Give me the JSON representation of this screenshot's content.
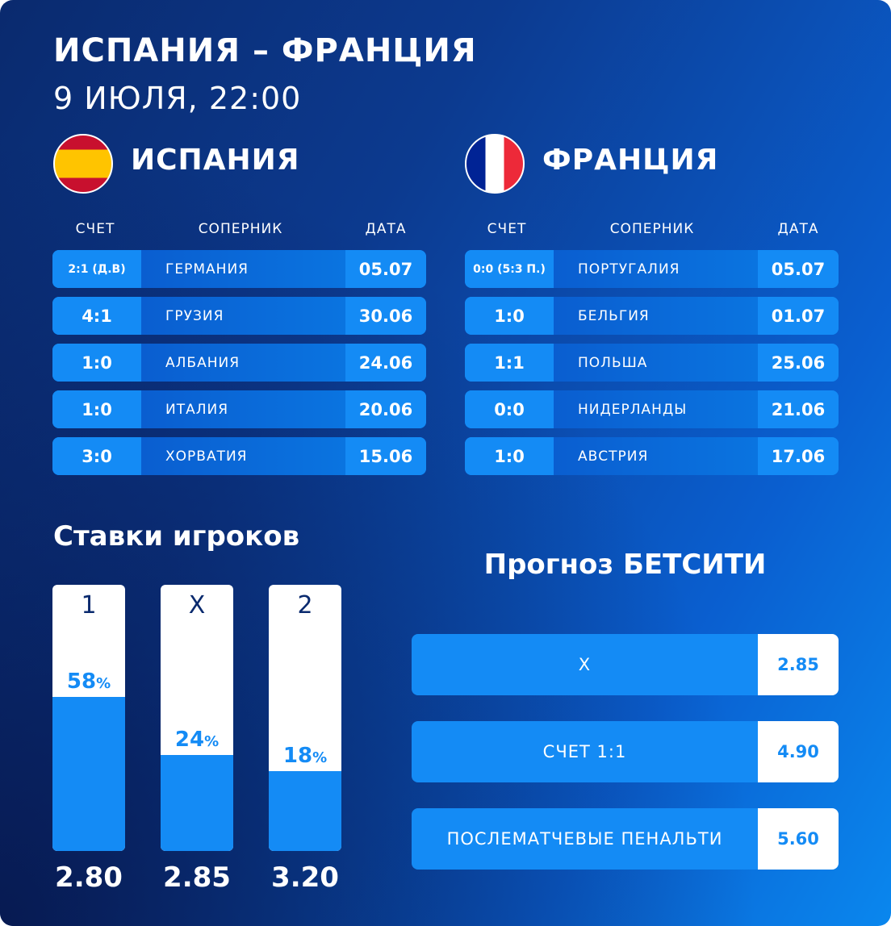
{
  "header": {
    "title": "ИСПАНИЯ – ФРАНЦИЯ",
    "subtitle": "9 ИЮЛЯ, 22:00"
  },
  "columns": {
    "score": "СЧЕТ",
    "opponent": "СОПЕРНИК",
    "date": "ДАТА"
  },
  "teams": [
    {
      "name": "ИСПАНИЯ",
      "flag": "spain-flag",
      "matches": [
        {
          "score": "2:1 (Д.В)",
          "opponent": "ГЕРМАНИЯ",
          "date": "05.07"
        },
        {
          "score": "4:1",
          "opponent": "ГРУЗИЯ",
          "date": "30.06"
        },
        {
          "score": "1:0",
          "opponent": "АЛБАНИЯ",
          "date": "24.06"
        },
        {
          "score": "1:0",
          "opponent": "ИТАЛИЯ",
          "date": "20.06"
        },
        {
          "score": "3:0",
          "opponent": "ХОРВАТИЯ",
          "date": "15.06"
        }
      ]
    },
    {
      "name": "ФРАНЦИЯ",
      "flag": "france-flag",
      "matches": [
        {
          "score": "0:0 (5:3 П.)",
          "opponent": "ПОРТУГАЛИЯ",
          "date": "05.07"
        },
        {
          "score": "1:0",
          "opponent": "БЕЛЬГИЯ",
          "date": "01.07"
        },
        {
          "score": "1:1",
          "opponent": "ПОЛЬША",
          "date": "25.06"
        },
        {
          "score": "0:0",
          "opponent": "НИДЕРЛАНДЫ",
          "date": "21.06"
        },
        {
          "score": "1:0",
          "opponent": "АВСТРИЯ",
          "date": "17.06"
        }
      ]
    }
  ],
  "bets": {
    "title": "Ставки игроков",
    "pct_suffix": "%",
    "items": [
      {
        "label": "1",
        "percent": 58,
        "percent_text": "58",
        "odds": "2.80"
      },
      {
        "label": "X",
        "percent": 24,
        "percent_text": "24",
        "odds": "2.85"
      },
      {
        "label": "2",
        "percent": 18,
        "percent_text": "18",
        "odds": "3.20"
      }
    ]
  },
  "forecast": {
    "title": "Прогноз БЕТСИТИ",
    "items": [
      {
        "label": "Х",
        "odds": "2.85"
      },
      {
        "label": "СЧЕТ 1:1",
        "odds": "4.90"
      },
      {
        "label": "ПОСЛЕМАТЧЕВЫЕ ПЕНАЛЬТИ",
        "odds": "5.60"
      }
    ]
  },
  "colors": {
    "accent": "#148bf5",
    "spain_red": "#c8102e",
    "spain_yellow": "#ffc400",
    "france_blue": "#002395",
    "france_red": "#ed2939"
  }
}
